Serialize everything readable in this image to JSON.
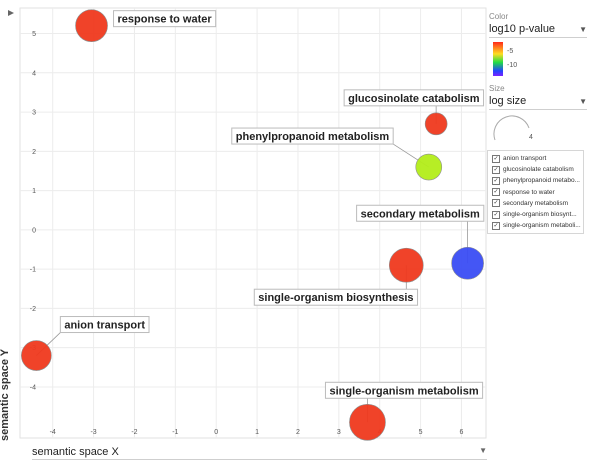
{
  "chart_data": {
    "type": "scatter",
    "xlabel": "semantic space X",
    "ylabel": "semantic space Y",
    "xlim": [
      -4.8,
      6.6
    ],
    "ylim": [
      -5.3,
      5.65
    ],
    "x_ticks": [
      -4,
      -3,
      -2,
      -1,
      0,
      1,
      2,
      3,
      4,
      5,
      6
    ],
    "y_ticks": [
      5,
      4,
      3,
      2,
      1,
      0,
      -1,
      -2,
      -3,
      -4
    ],
    "grid": true,
    "points": [
      {
        "name": "response to water",
        "x": -3.05,
        "y": 5.2,
        "color": "#f0391e",
        "radius": 16
      },
      {
        "name": "glucosinolate catabolism",
        "x": 5.38,
        "y": 2.7,
        "color": "#f0391e",
        "radius": 11
      },
      {
        "name": "phenylpropanoid metabolism",
        "x": 5.2,
        "y": 1.6,
        "color": "#b4ee1a",
        "radius": 13
      },
      {
        "name": "secondary metabolism",
        "x": 6.15,
        "y": -0.85,
        "color": "#3b4df5",
        "radius": 16
      },
      {
        "name": "single-organism biosynthesis",
        "x": 4.65,
        "y": -0.9,
        "color": "#f0391e",
        "radius": 17
      },
      {
        "name": "anion transport",
        "x": -4.4,
        "y": -3.2,
        "color": "#f0391e",
        "radius": 15
      },
      {
        "name": "single-organism metabolism",
        "x": 3.7,
        "y": -4.9,
        "color": "#f0391e",
        "radius": 18
      }
    ]
  },
  "controls": {
    "color_caption": "Color",
    "color_value": "log10 p-value",
    "color_scale_ticks": [
      "-5",
      "-10"
    ],
    "size_caption": "Size",
    "size_value": "log size",
    "size_tick": "4",
    "x_axis_select": "semantic space X"
  },
  "legend": {
    "items": [
      "anion transport",
      "glucosinolate catabolism",
      "phenylpropanoid metabo...",
      "response to water",
      "secondary metabolism",
      "single-organism biosynt...",
      "single-organism metaboli..."
    ]
  }
}
